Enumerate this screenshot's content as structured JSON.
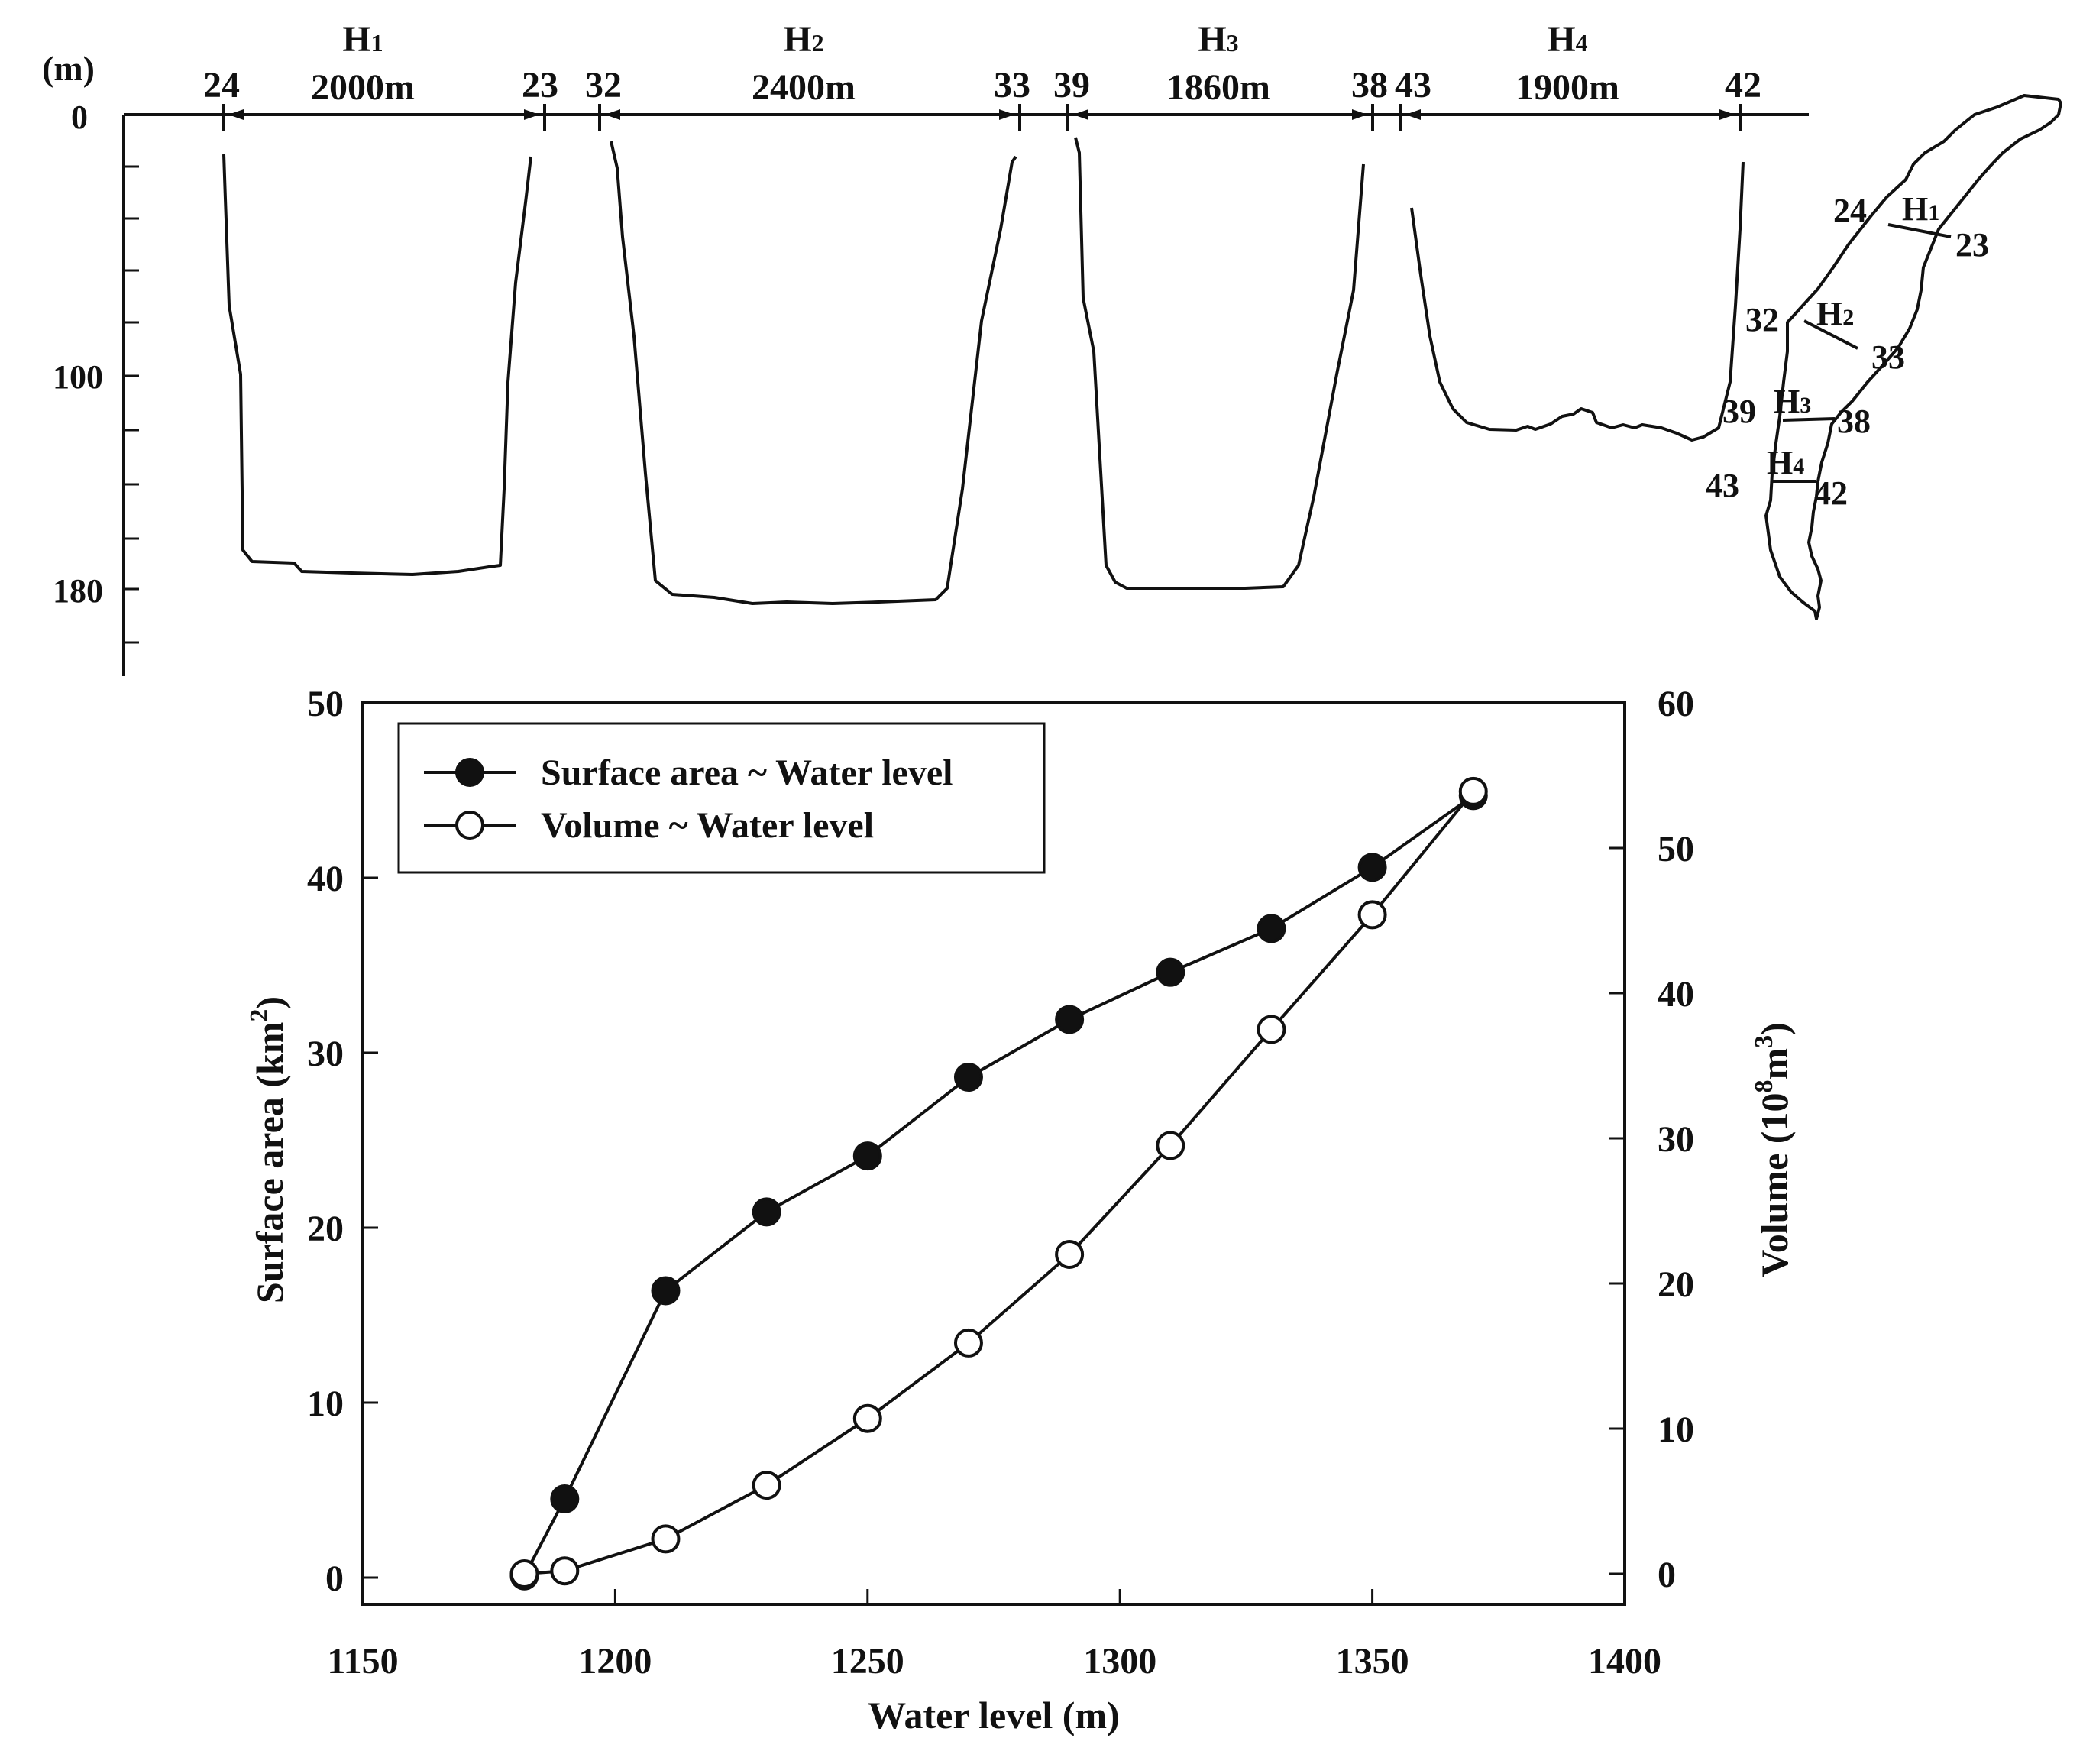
{
  "profile_panel": {
    "depth_unit_label": "(m)",
    "depth_ticks": [
      {
        "label": "0",
        "depth": 0
      },
      {
        "label": "100",
        "depth": 100
      },
      {
        "label": "180",
        "depth": 180
      }
    ],
    "sections": [
      {
        "name": "H1",
        "letter": "H",
        "sub": "1",
        "width_label": "2000m",
        "left_point": "24",
        "right_point": "23"
      },
      {
        "name": "H2",
        "letter": "H",
        "sub": "2",
        "width_label": "2400m",
        "left_point": "32",
        "right_point": "33"
      },
      {
        "name": "H3",
        "letter": "H",
        "sub": "3",
        "width_label": "1860m",
        "left_point": "39",
        "right_point": "38"
      },
      {
        "name": "H4",
        "letter": "H",
        "sub": "4",
        "width_label": "1900m",
        "left_point": "43",
        "right_point": "42"
      }
    ]
  },
  "map_inset": {
    "sections": [
      {
        "letter": "H",
        "sub": "1",
        "left_point": "24",
        "right_point": "23"
      },
      {
        "letter": "H",
        "sub": "2",
        "left_point": "32",
        "right_point": "33"
      },
      {
        "letter": "H",
        "sub": "3",
        "left_point": "39",
        "right_point": "38"
      },
      {
        "letter": "H",
        "sub": "4",
        "left_point": "43",
        "right_point": "42"
      }
    ]
  },
  "chart_data": {
    "type": "line",
    "title": "",
    "xlabel": "Water level (m)",
    "ylabel": "Surface area (km2)",
    "ylabel_parts": [
      "Surface area (km",
      "2",
      ")"
    ],
    "y2label": "Volume (108m3)",
    "y2label_parts": [
      "Volume (10",
      "8",
      "m",
      "3",
      ")"
    ],
    "xlim": [
      1150,
      1400
    ],
    "ylim": [
      0,
      50
    ],
    "y2lim": [
      0,
      60
    ],
    "xticks": [
      1150,
      1200,
      1250,
      1300,
      1350,
      1400
    ],
    "yticks": [
      0,
      10,
      20,
      30,
      40,
      50
    ],
    "y2ticks": [
      0,
      10,
      20,
      30,
      40,
      50,
      60
    ],
    "legend_position": "top-left",
    "grid": false,
    "series": [
      {
        "name": "Surface area ~ Water level",
        "axis": "left",
        "marker": "filled-circle",
        "color": "#111111",
        "x": [
          1182,
          1190,
          1210,
          1230,
          1250,
          1270,
          1290,
          1310,
          1330,
          1350,
          1370
        ],
        "y": [
          0.1,
          4.5,
          16.4,
          20.9,
          24.1,
          28.6,
          31.9,
          34.6,
          37.1,
          40.6,
          44.7
        ]
      },
      {
        "name": "Volume ~ Water level",
        "axis": "right",
        "marker": "open-circle",
        "color": "#111111",
        "x": [
          1182,
          1190,
          1210,
          1230,
          1250,
          1270,
          1290,
          1310,
          1330,
          1350,
          1370
        ],
        "y": [
          0.0,
          0.2,
          2.4,
          6.1,
          10.7,
          15.9,
          22.0,
          29.5,
          37.5,
          45.4,
          53.9
        ]
      }
    ]
  }
}
